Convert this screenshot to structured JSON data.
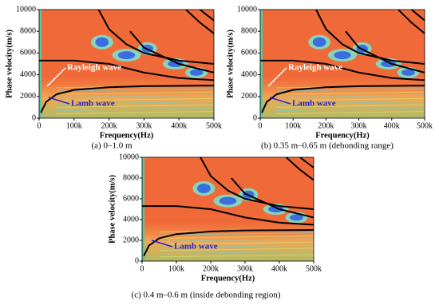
{
  "chart_data": [
    {
      "type": "heatmap",
      "caption": "(a) 0–1.0 m",
      "xlabel": "Frequency(Hz)",
      "ylabel": "Phase velocity(m/s)",
      "xlim": [
        0,
        500000
      ],
      "xticks": [
        0,
        {
          "value": 100000,
          "label": "100k"
        },
        {
          "value": 200000,
          "label": "200k"
        },
        {
          "value": 300000,
          "label": "300k"
        },
        {
          "value": 400000,
          "label": "400k"
        },
        {
          "value": 500000,
          "label": "500k"
        }
      ],
      "ylim": [
        0,
        10000
      ],
      "yticks": [
        0,
        2000,
        4000,
        6000,
        8000,
        10000
      ],
      "annotations": [
        {
          "text": "Rayleigh wave",
          "color": "#ffffff"
        },
        {
          "text": "Lamb wave",
          "color": "#2a1fd0"
        }
      ],
      "series": [
        {
          "color": "#000000",
          "x": [
            5000,
            20000,
            50000,
            100000,
            200000,
            300000,
            500000
          ],
          "values": [
            500,
            1500,
            2200,
            2600,
            2850,
            2950,
            3000
          ]
        },
        {
          "color": "#000000",
          "x": [
            0,
            100000,
            200000,
            300000,
            400000,
            500000
          ],
          "values": [
            5300,
            5300,
            5000,
            4200,
            3700,
            3500
          ]
        },
        {
          "color": "#000000",
          "x": [
            170000,
            200000,
            250000,
            300000,
            400000,
            500000
          ],
          "values": [
            10000,
            8200,
            6800,
            6000,
            5300,
            5000
          ]
        },
        {
          "color": "#000000",
          "x": [
            260000,
            300000,
            400000,
            500000
          ],
          "values": [
            8000,
            6500,
            5000,
            4200
          ]
        },
        {
          "color": "#000000",
          "x": [
            420000,
            460000,
            500000
          ],
          "values": [
            10000,
            8800,
            7800
          ]
        },
        {
          "color": "#000000",
          "x": [
            460000,
            480000,
            500000
          ],
          "values": [
            10000,
            9500,
            9000
          ]
        }
      ]
    },
    {
      "type": "heatmap",
      "caption": "(b) 0.35 m–0.65 m (debonding range)",
      "xlabel": "Frequency(Hz)",
      "ylabel": "Phase velocity(m/s)",
      "xlim": [
        0,
        500000
      ],
      "xticks": [
        0,
        {
          "value": 100000,
          "label": "100k"
        },
        {
          "value": 200000,
          "label": "200k"
        },
        {
          "value": 300000,
          "label": "300k"
        },
        {
          "value": 400000,
          "label": "400k"
        },
        {
          "value": 500000,
          "label": "500k"
        }
      ],
      "ylim": [
        0,
        10000
      ],
      "yticks": [
        0,
        2000,
        4000,
        6000,
        8000,
        10000
      ],
      "annotations": [
        {
          "text": "Rayleigh wave",
          "color": "#ffffff"
        },
        {
          "text": "Lamb wave",
          "color": "#2a1fd0"
        }
      ],
      "series": [
        {
          "color": "#000000",
          "x": [
            5000,
            20000,
            50000,
            100000,
            200000,
            300000,
            500000
          ],
          "values": [
            500,
            1500,
            2200,
            2600,
            2850,
            2950,
            3000
          ]
        },
        {
          "color": "#000000",
          "x": [
            0,
            100000,
            200000,
            300000,
            400000,
            500000
          ],
          "values": [
            5300,
            5300,
            5000,
            4200,
            3700,
            3500
          ]
        },
        {
          "color": "#000000",
          "x": [
            170000,
            200000,
            250000,
            300000,
            400000,
            500000
          ],
          "values": [
            10000,
            8200,
            6800,
            6000,
            5300,
            5000
          ]
        },
        {
          "color": "#000000",
          "x": [
            260000,
            300000,
            400000,
            500000
          ],
          "values": [
            8000,
            6500,
            5000,
            4200
          ]
        },
        {
          "color": "#000000",
          "x": [
            420000,
            460000,
            500000
          ],
          "values": [
            10000,
            8800,
            7800
          ]
        },
        {
          "color": "#000000",
          "x": [
            460000,
            480000,
            500000
          ],
          "values": [
            10000,
            9500,
            9000
          ]
        }
      ]
    },
    {
      "type": "heatmap",
      "caption": "(c) 0.4 m–0.6 m (inside debonding region)",
      "xlabel": "Frequency(Hz)",
      "ylabel": "Phase velocity(m/s)",
      "xlim": [
        0,
        500000
      ],
      "xticks": [
        0,
        {
          "value": 100000,
          "label": "100k"
        },
        {
          "value": 200000,
          "label": "200k"
        },
        {
          "value": 300000,
          "label": "300k"
        },
        {
          "value": 400000,
          "label": "400k"
        },
        {
          "value": 500000,
          "label": "500k"
        }
      ],
      "ylim": [
        0,
        10000
      ],
      "yticks": [
        0,
        2000,
        4000,
        6000,
        8000,
        10000
      ],
      "annotations": [
        {
          "text": "Lamb wave",
          "color": "#2a1fd0"
        }
      ],
      "series": [
        {
          "color": "#000000",
          "x": [
            5000,
            20000,
            50000,
            100000,
            200000,
            300000,
            500000
          ],
          "values": [
            500,
            1500,
            2200,
            2600,
            2850,
            2950,
            3000
          ]
        },
        {
          "color": "#000000",
          "x": [
            0,
            100000,
            200000,
            300000,
            400000,
            500000
          ],
          "values": [
            5300,
            5300,
            5000,
            4200,
            3700,
            3500
          ]
        },
        {
          "color": "#000000",
          "x": [
            170000,
            200000,
            250000,
            300000,
            400000,
            500000
          ],
          "values": [
            10000,
            8200,
            6800,
            6000,
            5300,
            5000
          ]
        },
        {
          "color": "#000000",
          "x": [
            260000,
            300000,
            400000,
            500000
          ],
          "values": [
            8000,
            6500,
            5000,
            4200
          ]
        },
        {
          "color": "#000000",
          "x": [
            420000,
            460000,
            500000
          ],
          "values": [
            10000,
            8800,
            7800
          ]
        },
        {
          "color": "#000000",
          "x": [
            460000,
            480000,
            500000
          ],
          "values": [
            10000,
            9500,
            9000
          ]
        }
      ]
    }
  ]
}
